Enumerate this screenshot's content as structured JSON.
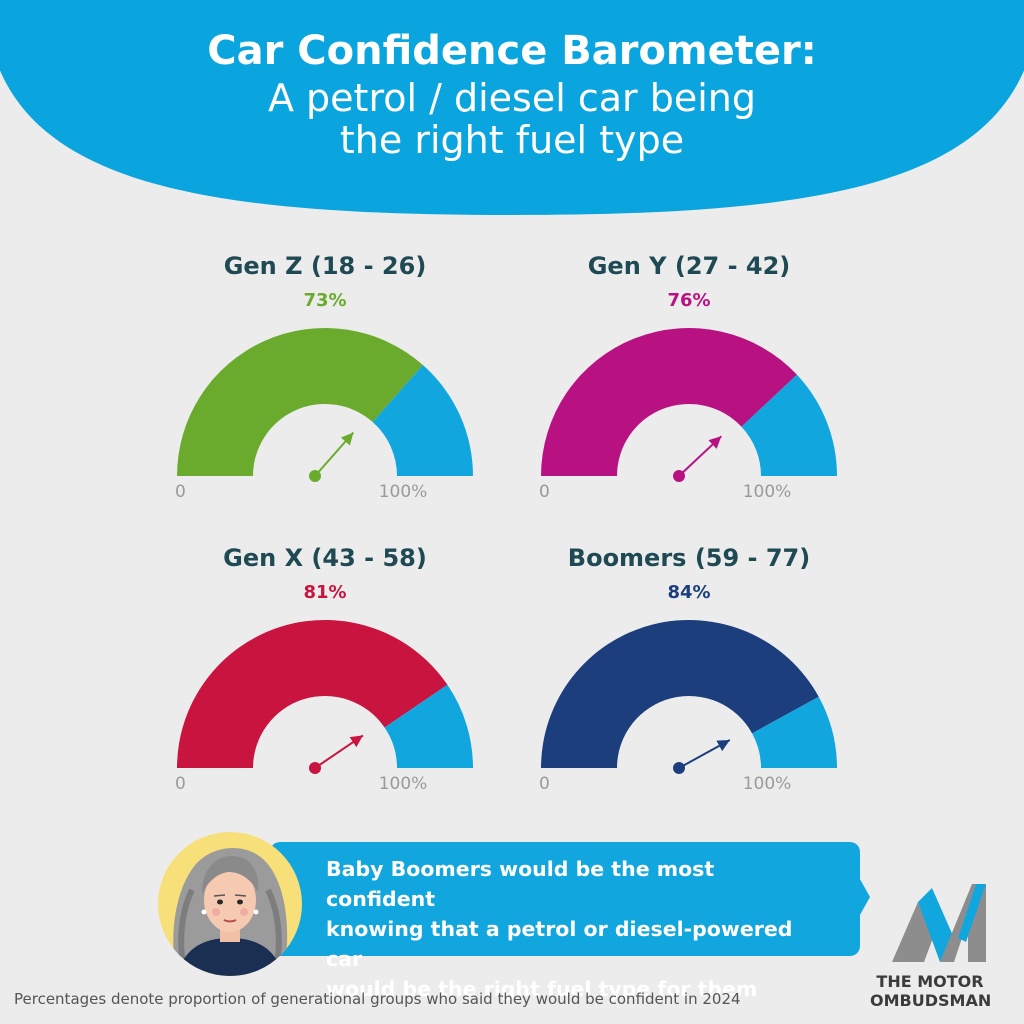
{
  "header": {
    "title_line1": "Car Confidence Barometer:",
    "title_line2": "A petrol / diesel car being",
    "title_line3": "the right fuel type"
  },
  "chart_data": [
    {
      "type": "gauge",
      "label": "Gen Z (18 - 26)",
      "value": 73,
      "value_text": "73%",
      "min_label": "0",
      "max_label": "100%",
      "color": "#6aab2e",
      "remainder_color": "#12a6df"
    },
    {
      "type": "gauge",
      "label": "Gen Y (27 - 42)",
      "value": 76,
      "value_text": "76%",
      "min_label": "0",
      "max_label": "100%",
      "color": "#b81282",
      "remainder_color": "#12a6df"
    },
    {
      "type": "gauge",
      "label": "Gen X (43 - 58)",
      "value": 81,
      "value_text": "81%",
      "min_label": "0",
      "max_label": "100%",
      "color": "#c8143f",
      "remainder_color": "#12a6df"
    },
    {
      "type": "gauge",
      "label": "Boomers (59 - 77)",
      "value": 84,
      "value_text": "84%",
      "min_label": "0",
      "max_label": "100%",
      "color": "#1c3e7c",
      "remainder_color": "#12a6df"
    }
  ],
  "callout": {
    "line1": "Baby Boomers would be the most confident",
    "line2": "knowing that a petrol or diesel-powered car",
    "line3": "would be the right fuel type for them"
  },
  "logo": {
    "line1": "THE MOTOR",
    "line2": "OMBUDSMAN"
  },
  "footnote": "Percentages denote proportion of generational groups who said they would be confident in 2024",
  "colors": {
    "header_blue": "#0aa5de",
    "background": "#ececec",
    "heading_text": "#1f4a54"
  }
}
